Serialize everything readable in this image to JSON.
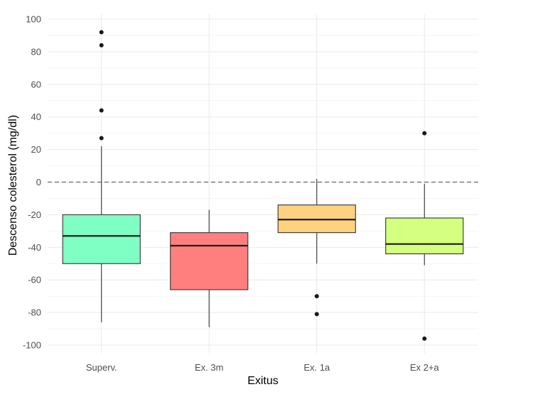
{
  "chart_data": {
    "type": "boxplot",
    "title": "",
    "xlabel": "Exitus",
    "ylabel": "Descenso colesterol (mg/dl)",
    "ylim": [
      -105,
      103
    ],
    "yticks": [
      100,
      80,
      60,
      40,
      20,
      0,
      -20,
      -40,
      -60,
      -80,
      -100
    ],
    "reference_line": {
      "y": 0,
      "style": "dashed",
      "color": "#666666"
    },
    "grid": true,
    "categories": [
      "Superv.",
      "Ex. 3m",
      "Ex. 1a",
      "Ex 2+a"
    ],
    "boxes": [
      {
        "category": "Superv.",
        "min": -86,
        "q1": -50,
        "median": -33,
        "q3": -20,
        "max": 22,
        "outliers": [
          27,
          44,
          84,
          92
        ],
        "color": "#80ffc4"
      },
      {
        "category": "Ex. 3m",
        "min": -89,
        "q1": -66,
        "median": -39,
        "q3": -31,
        "max": -17,
        "outliers": [],
        "color": "#ff7f7f"
      },
      {
        "category": "Ex. 1a",
        "min": -50,
        "q1": -31,
        "median": -23,
        "q3": -14,
        "max": 2,
        "outliers": [
          -70,
          -81
        ],
        "color": "#ffd280"
      },
      {
        "category": "Ex 2+a",
        "min": -51,
        "q1": -44,
        "median": -38,
        "q3": -22,
        "max": -1,
        "outliers": [
          30,
          -96
        ],
        "color": "#d4ff80"
      }
    ]
  }
}
